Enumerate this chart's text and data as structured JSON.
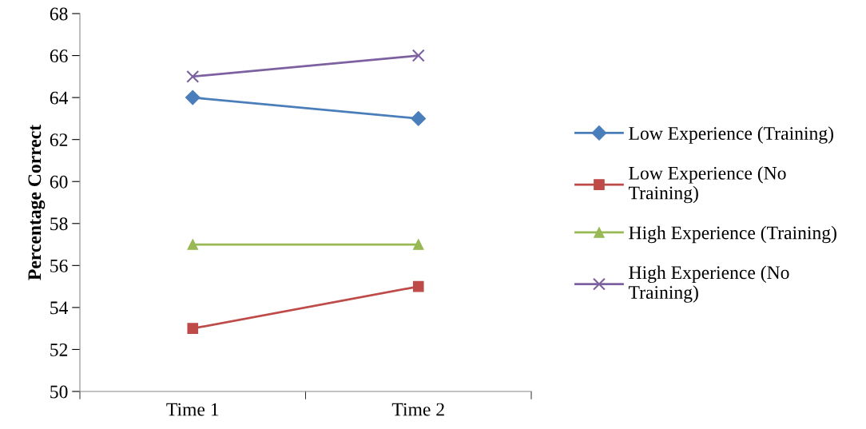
{
  "chart_data": {
    "type": "line",
    "ylabel": "Percentage Correct",
    "categories": [
      "Time 1",
      "Time 2"
    ],
    "series": [
      {
        "name": "Low Experience (Training)",
        "color": "#4a7ebb",
        "marker": "diamond",
        "values": [
          64,
          63
        ]
      },
      {
        "name": "Low Experience (No\nTraining)",
        "color": "#be4b48",
        "marker": "square",
        "values": [
          53,
          55
        ]
      },
      {
        "name": "High Experience (Training)",
        "color": "#98b954",
        "marker": "triangle",
        "values": [
          57,
          57
        ]
      },
      {
        "name": "High Experience (No\nTraining)",
        "color": "#7d60a0",
        "marker": "cross",
        "values": [
          65,
          66
        ]
      }
    ],
    "ylim": [
      50,
      68
    ],
    "yticks": [
      50,
      52,
      54,
      56,
      58,
      60,
      62,
      64,
      66,
      68
    ],
    "grid": false,
    "legend": "right",
    "line_style": "solid"
  }
}
